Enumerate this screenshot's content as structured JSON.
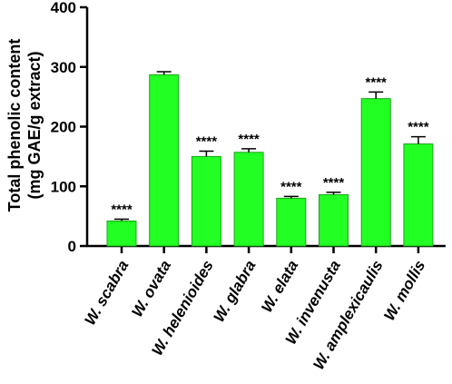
{
  "chart_data": {
    "type": "bar",
    "ylabel_line1": "Total phenolic content",
    "ylabel_line2": "(mg GAE/g extract)",
    "ylim": [
      0,
      400
    ],
    "yticks": [
      "0",
      "100",
      "200",
      "300",
      "400"
    ],
    "categories": [
      "W. scabra",
      "W. ovata",
      "W. helenioides",
      "W. glabra",
      "W. elata",
      "W. invenusta",
      "W. amplexicaulis",
      "W. mollis"
    ],
    "values": [
      42,
      287,
      150,
      157,
      80,
      86,
      247,
      171
    ],
    "errors": [
      3,
      5,
      9,
      6,
      3,
      4,
      11,
      12
    ],
    "significance": [
      "****",
      "",
      "****",
      "****",
      "****",
      "****",
      "****",
      "****"
    ],
    "bar_color": "#22ff22",
    "bar_edge_color": "#1aa51a",
    "grid": false,
    "legend": "none"
  }
}
